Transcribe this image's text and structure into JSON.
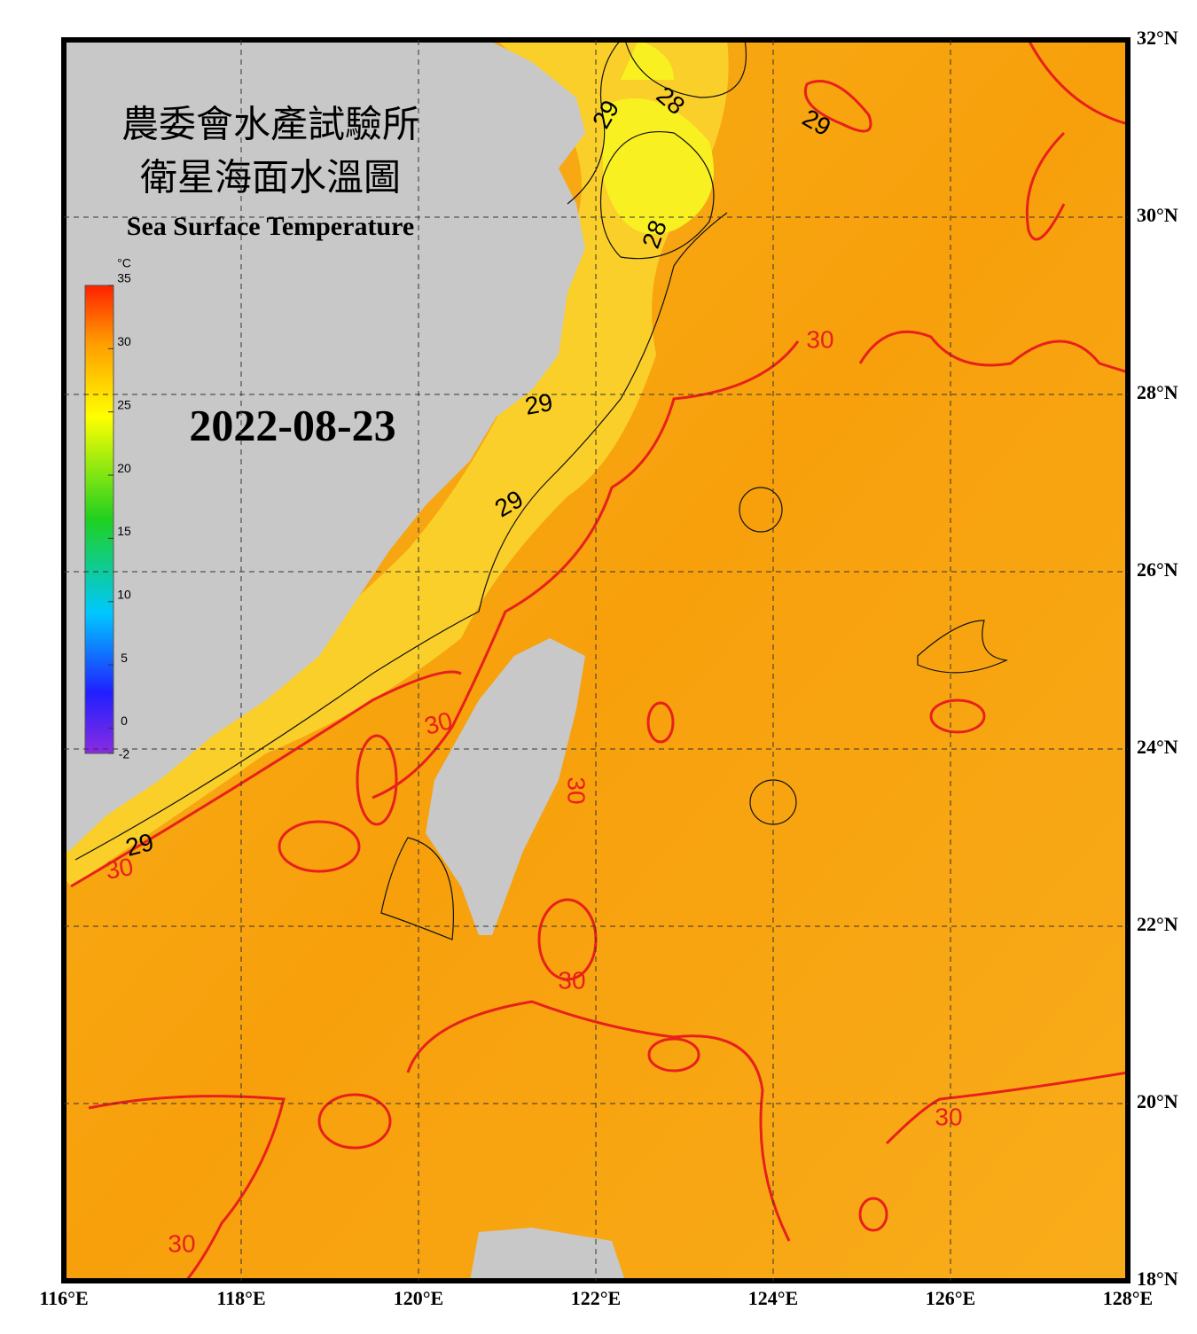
{
  "title": "農委會水產試驗所",
  "subtitle": "衛星海面水溫圖",
  "title_en": "Sea Surface Temperature",
  "date": "2022-08-23",
  "lon_ticks": [
    {
      "value": 116,
      "label": "116°E"
    },
    {
      "value": 118,
      "label": "118°E"
    },
    {
      "value": 120,
      "label": "120°E"
    },
    {
      "value": 122,
      "label": "122°E"
    },
    {
      "value": 124,
      "label": "124°E"
    },
    {
      "value": 126,
      "label": "126°E"
    },
    {
      "value": 128,
      "label": "128°E"
    }
  ],
  "lat_ticks": [
    {
      "value": 18,
      "label": "18°N"
    },
    {
      "value": 20,
      "label": "20°N"
    },
    {
      "value": 22,
      "label": "22°N"
    },
    {
      "value": 24,
      "label": "24°N"
    },
    {
      "value": 26,
      "label": "26°N"
    },
    {
      "value": 28,
      "label": "28°N"
    },
    {
      "value": 30,
      "label": "30°N"
    },
    {
      "value": 32,
      "label": "32°N"
    }
  ],
  "colorbar": {
    "unit": "°C",
    "range": [
      -2,
      35
    ],
    "ticks": [
      -2,
      0,
      5,
      10,
      15,
      20,
      25,
      30,
      35
    ]
  },
  "contour_labels": [
    "29",
    "28",
    "29",
    "28",
    "29",
    "29",
    "29",
    "30",
    "30",
    "30",
    "30",
    "30",
    "30",
    "30"
  ]
}
